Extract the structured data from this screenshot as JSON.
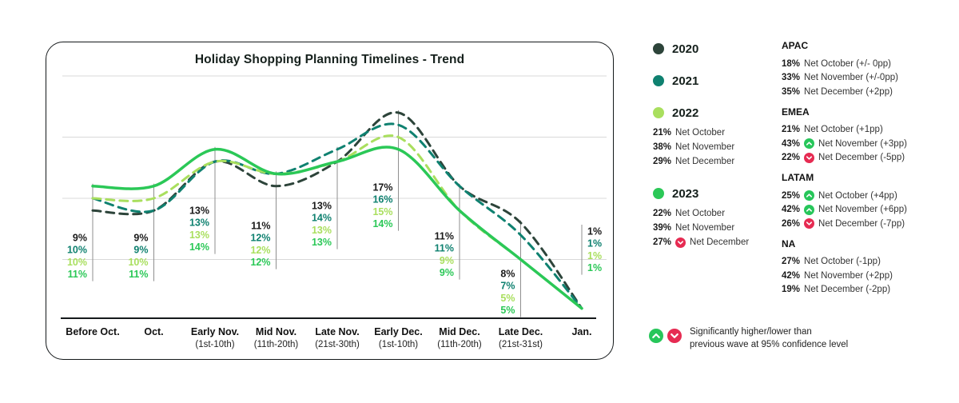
{
  "title": "Holiday Shopping Planning Timelines - Trend",
  "chart_data": {
    "type": "line",
    "title": "Holiday Shopping Planning Timelines - Trend",
    "unit": "%",
    "categories": [
      "Before Oct.",
      "Oct.",
      "Early Nov.",
      "Mid Nov.",
      "Late Nov.",
      "Early Dec.",
      "Mid Dec.",
      "Late Dec.",
      "Jan."
    ],
    "category_sublabels": [
      "",
      "",
      "(1st-10th)",
      "(11th-20th)",
      "(21st-30th)",
      "(1st-10th)",
      "(11th-20th)",
      "(21st-31st)",
      ""
    ],
    "series": [
      {
        "name": "2020",
        "style": "dashed",
        "color": "#2d443a",
        "values": [
          9,
          9,
          13,
          11,
          13,
          17,
          11,
          8,
          1
        ]
      },
      {
        "name": "2021",
        "style": "dashed",
        "color": "#0f8170",
        "values": [
          10,
          9,
          13,
          12,
          14,
          16,
          11,
          7,
          1
        ]
      },
      {
        "name": "2022",
        "style": "dashed",
        "color": "#a9df5e",
        "values": [
          10,
          10,
          13,
          12,
          13,
          15,
          9,
          5,
          1
        ]
      },
      {
        "name": "2023",
        "style": "solid",
        "color": "#2bc857",
        "values": [
          11,
          11,
          14,
          12,
          13,
          14,
          9,
          5,
          1
        ]
      }
    ],
    "ylim": [
      0,
      22
    ],
    "gridline_values": [
      5,
      10,
      15,
      20
    ],
    "grid": true,
    "value_labels": true,
    "legend_position": "right"
  },
  "legend_years": [
    {
      "label": "2020",
      "color": "#2d443a",
      "rows": []
    },
    {
      "label": "2021",
      "color": "#0f8170",
      "rows": []
    },
    {
      "label": "2022",
      "color": "#a9df5e",
      "rows": [
        {
          "pct": "21%",
          "text": "Net October"
        },
        {
          "pct": "38%",
          "text": "Net November"
        },
        {
          "pct": "29%",
          "text": "Net December"
        }
      ]
    },
    {
      "label": "2023",
      "color": "#2bc857",
      "rows": [
        {
          "pct": "22%",
          "text": "Net October"
        },
        {
          "pct": "39%",
          "text": "Net November"
        },
        {
          "pct": "27%",
          "icon": "down",
          "text": "Net December"
        }
      ]
    }
  ],
  "regions": [
    {
      "name": "APAC",
      "rows": [
        {
          "pct": "18%",
          "text": "Net October (+/- 0pp)"
        },
        {
          "pct": "33%",
          "text": "Net November (+/-0pp)"
        },
        {
          "pct": "35%",
          "text": "Net December (+2pp)"
        }
      ]
    },
    {
      "name": "EMEA",
      "rows": [
        {
          "pct": "21%",
          "text": "Net October (+1pp)"
        },
        {
          "pct": "43%",
          "icon": "up",
          "text": "Net November (+3pp)"
        },
        {
          "pct": "22%",
          "icon": "down",
          "text": "Net December (-5pp)"
        }
      ]
    },
    {
      "name": "LATAM",
      "rows": [
        {
          "pct": "25%",
          "icon": "up",
          "text": "Net October (+4pp)"
        },
        {
          "pct": "42%",
          "icon": "up",
          "text": "Net November (+6pp)"
        },
        {
          "pct": "26%",
          "icon": "down",
          "text": "Net December (-7pp)"
        }
      ]
    },
    {
      "name": "NA",
      "rows": [
        {
          "pct": "27%",
          "text": "Net October (-1pp)"
        },
        {
          "pct": "42%",
          "text": "Net November (+2pp)"
        },
        {
          "pct": "19%",
          "text": "Net December (-2pp)"
        }
      ]
    }
  ],
  "footnote": {
    "line1": "Significantly higher/lower than",
    "line2": "previous wave at 95% confidence level"
  },
  "colors": {
    "significant_up": "#27c65a",
    "significant_down": "#e62b52",
    "grid": "#d9d9d9",
    "marker": "#8f8f8f",
    "axis": "#15191b",
    "label_text": "#1a1a1a"
  }
}
